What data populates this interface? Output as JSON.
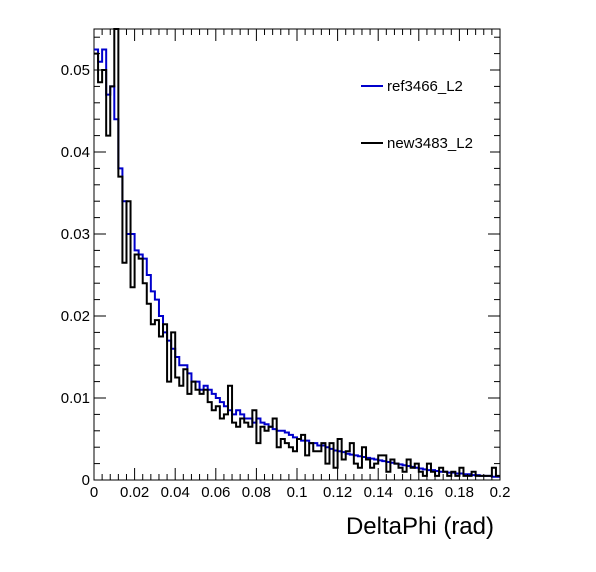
{
  "chart_data": {
    "type": "line",
    "title": "",
    "xlabel": "DeltaPhi (rad)",
    "ylabel": "",
    "xlim": [
      0,
      0.2
    ],
    "ylim": [
      0,
      0.055
    ],
    "grid": false,
    "legend_position": "top-right",
    "x_ticks": [
      0,
      0.02,
      0.04,
      0.06,
      0.08,
      0.1,
      0.12,
      0.14,
      0.16,
      0.18,
      0.2
    ],
    "x_tick_labels": [
      "0",
      "0.02",
      "0.04",
      "0.06",
      "0.08",
      "0.1",
      "0.12",
      "0.14",
      "0.16",
      "0.18",
      "0.2"
    ],
    "y_ticks": [
      0,
      0.01,
      0.02,
      0.03,
      0.04,
      0.05
    ],
    "y_tick_labels": [
      "0",
      "0.01",
      "0.02",
      "0.03",
      "0.04",
      "0.05"
    ],
    "bin_edges_start": 0,
    "bin_width": 0.002,
    "series": [
      {
        "name": "ref3466_L2",
        "color": "#0000cc",
        "values": [
          0.0525,
          0.051,
          0.0525,
          0.047,
          0.048,
          0.044,
          0.038,
          0.034,
          0.03,
          0.03,
          0.028,
          0.0275,
          0.027,
          0.025,
          0.023,
          0.022,
          0.02,
          0.018,
          0.017,
          0.016,
          0.015,
          0.014,
          0.014,
          0.013,
          0.012,
          0.012,
          0.011,
          0.0115,
          0.011,
          0.0105,
          0.01,
          0.0095,
          0.009,
          0.0085,
          0.008,
          0.0085,
          0.008,
          0.0075,
          0.0075,
          0.007,
          0.0075,
          0.007,
          0.0068,
          0.0065,
          0.0062,
          0.006,
          0.006,
          0.0058,
          0.0055,
          0.0052,
          0.005,
          0.0048,
          0.0048,
          0.0045,
          0.0045,
          0.0042,
          0.0042,
          0.004,
          0.0038,
          0.0036,
          0.0035,
          0.0034,
          0.0032,
          0.0031,
          0.003,
          0.0029,
          0.0028,
          0.0027,
          0.0026,
          0.0025,
          0.0024,
          0.0023,
          0.0022,
          0.0021,
          0.002,
          0.0019,
          0.0018,
          0.0017,
          0.0016,
          0.0015,
          0.0014,
          0.0013,
          0.0012,
          0.0012,
          0.0011,
          0.001,
          0.001,
          0.0009,
          0.0009,
          0.0008,
          0.0008,
          0.0007,
          0.0007,
          0.0006,
          0.0006,
          0.0005,
          0.0005,
          0.0005,
          0.0004,
          0.0004
        ]
      },
      {
        "name": "new3483_L2",
        "color": "#000000",
        "values": [
          0.052,
          0.0485,
          0.05,
          0.042,
          0.048,
          0.057,
          0.037,
          0.0265,
          0.034,
          0.0235,
          0.0275,
          0.027,
          0.024,
          0.0215,
          0.019,
          0.0195,
          0.0175,
          0.019,
          0.012,
          0.018,
          0.0125,
          0.0115,
          0.0135,
          0.0105,
          0.012,
          0.011,
          0.0105,
          0.011,
          0.0095,
          0.0085,
          0.009,
          0.0075,
          0.008,
          0.0115,
          0.007,
          0.0065,
          0.0075,
          0.007,
          0.0065,
          0.0085,
          0.0045,
          0.0065,
          0.006,
          0.0065,
          0.0075,
          0.004,
          0.005,
          0.0045,
          0.004,
          0.0035,
          0.005,
          0.0055,
          0.003,
          0.0045,
          0.0035,
          0.0035,
          0.0045,
          0.002,
          0.0045,
          0.0015,
          0.005,
          0.0025,
          0.0035,
          0.0045,
          0.002,
          0.0015,
          0.004,
          0.0025,
          0.0015,
          0.002,
          0.003,
          0.003,
          0.001,
          0.0025,
          0.002,
          0.0015,
          0.001,
          0.0025,
          0.0015,
          0.002,
          0.001,
          0.0005,
          0.002,
          0.001,
          0.0005,
          0.0015,
          0.001,
          0.0005,
          0.001,
          0.0005,
          0.0015,
          0.0005,
          0.0005,
          0.001,
          0.0005,
          0.0005,
          0.0005,
          0.0005,
          0.0015,
          0.0005
        ]
      }
    ]
  }
}
